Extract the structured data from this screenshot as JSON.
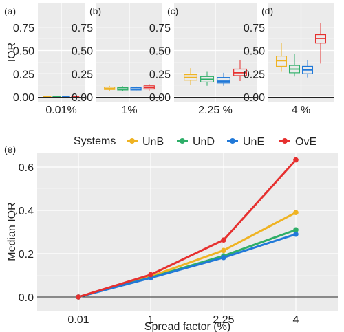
{
  "chart_data": [
    {
      "panel": "(a)",
      "type": "box",
      "ylabel": "IQR",
      "xlabel": "0.01%",
      "ylim": [
        0,
        0.8
      ],
      "yticks": [
        "0.00",
        "0.25",
        "0.50",
        "0.75"
      ],
      "systems": [
        "UnB",
        "UnD",
        "UnE",
        "OvE"
      ],
      "boxes": [
        {
          "system": "UnB",
          "min": 0.0,
          "q1": 0.0,
          "median": 0.0,
          "q3": 0.002,
          "max": 0.004
        },
        {
          "system": "UnD",
          "min": 0.0,
          "q1": 0.0,
          "median": 0.0,
          "q3": 0.002,
          "max": 0.004
        },
        {
          "system": "UnE",
          "min": 0.0,
          "q1": 0.0,
          "median": 0.0,
          "q3": 0.002,
          "max": 0.004
        },
        {
          "system": "OvE",
          "min": 0.0,
          "q1": 0.0,
          "median": 0.0,
          "q3": 0.002,
          "max": 0.004
        }
      ]
    },
    {
      "panel": "(b)",
      "type": "box",
      "xlabel": "1%",
      "ylim": [
        0,
        0.8
      ],
      "yticks": [
        "0.00",
        "0.25",
        "0.50",
        "0.75"
      ],
      "boxes": [
        {
          "system": "UnB",
          "min": 0.06,
          "q1": 0.08,
          "median": 0.09,
          "q3": 0.105,
          "max": 0.12
        },
        {
          "system": "UnD",
          "min": 0.06,
          "q1": 0.075,
          "median": 0.085,
          "q3": 0.1,
          "max": 0.115
        },
        {
          "system": "UnE",
          "min": 0.06,
          "q1": 0.075,
          "median": 0.085,
          "q3": 0.1,
          "max": 0.115
        },
        {
          "system": "OvE",
          "min": 0.06,
          "q1": 0.085,
          "median": 0.1,
          "q3": 0.12,
          "max": 0.14
        }
      ]
    },
    {
      "panel": "(c)",
      "type": "box",
      "xlabel": "2.25 %",
      "ylim": [
        0,
        0.8
      ],
      "yticks": [
        "0.00",
        "0.25",
        "0.50",
        "0.75"
      ],
      "boxes": [
        {
          "system": "UnB",
          "min": 0.13,
          "q1": 0.18,
          "median": 0.21,
          "q3": 0.24,
          "max": 0.31
        },
        {
          "system": "UnD",
          "min": 0.12,
          "q1": 0.16,
          "median": 0.19,
          "q3": 0.22,
          "max": 0.27
        },
        {
          "system": "UnE",
          "min": 0.12,
          "q1": 0.15,
          "median": 0.17,
          "q3": 0.21,
          "max": 0.26
        },
        {
          "system": "OvE",
          "min": 0.17,
          "q1": 0.23,
          "median": 0.26,
          "q3": 0.3,
          "max": 0.4
        }
      ]
    },
    {
      "panel": "(d)",
      "type": "box",
      "xlabel": "4 %",
      "ylim": [
        0,
        0.8
      ],
      "yticks": [
        "0.00",
        "0.25",
        "0.50",
        "0.75"
      ],
      "boxes": [
        {
          "system": "UnB",
          "min": 0.27,
          "q1": 0.33,
          "median": 0.39,
          "q3": 0.44,
          "max": 0.58
        },
        {
          "system": "UnD",
          "min": 0.22,
          "q1": 0.26,
          "median": 0.3,
          "q3": 0.34,
          "max": 0.46
        },
        {
          "system": "UnE",
          "min": 0.21,
          "q1": 0.25,
          "median": 0.29,
          "q3": 0.33,
          "max": 0.4
        },
        {
          "system": "OvE",
          "min": 0.36,
          "q1": 0.58,
          "median": 0.63,
          "q3": 0.67,
          "max": 0.8
        }
      ]
    },
    {
      "panel": "(e)",
      "type": "line",
      "xlabel": "Spread factor (%)",
      "ylabel": "Median IQR",
      "categories": [
        "0.01",
        "1",
        "2.25",
        "4"
      ],
      "ylim": [
        -0.03,
        0.67
      ],
      "yticks": [
        "0.0",
        "0.2",
        "0.4",
        "0.6"
      ],
      "legend_title": "Systems",
      "legend_position": "top",
      "series": [
        {
          "name": "UnB",
          "values": [
            0.0,
            0.095,
            0.215,
            0.39
          ]
        },
        {
          "name": "UnD",
          "values": [
            0.0,
            0.09,
            0.19,
            0.31
          ]
        },
        {
          "name": "UnE",
          "values": [
            0.0,
            0.088,
            0.182,
            0.29
          ]
        },
        {
          "name": "OvE",
          "values": [
            0.0,
            0.103,
            0.263,
            0.633
          ]
        }
      ]
    }
  ],
  "colors": {
    "UnB": "#EFB323",
    "UnD": "#2EAE68",
    "UnE": "#2179D8",
    "OvE": "#E6302F",
    "panel_bg": "#EBEBEB",
    "grid": "#FFFFFF"
  }
}
